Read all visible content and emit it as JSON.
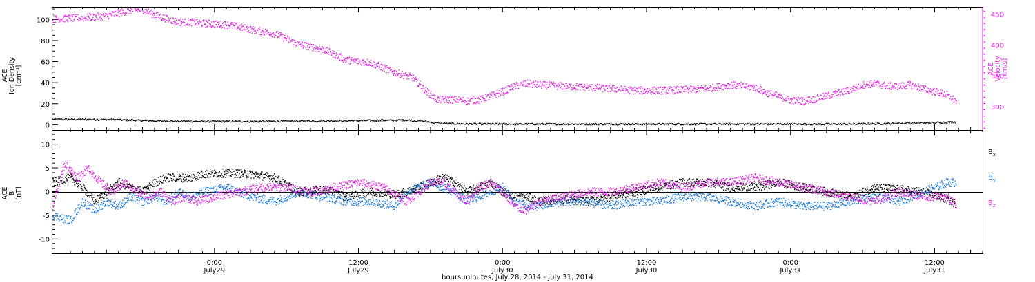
{
  "figure": {
    "x_title": "hours:minutes, July 28, 2014 - July 31, 2014",
    "x_ticks": [
      {
        "hours": 11,
        "time": "0:00",
        "date": "July29"
      },
      {
        "hours": 23,
        "time": "12:00",
        "date": "July29"
      },
      {
        "hours": 35,
        "time": "0:00",
        "date": "July30"
      },
      {
        "hours": 47,
        "time": "12:00",
        "date": "July30"
      },
      {
        "hours": 59,
        "time": "0:00",
        "date": "July31"
      },
      {
        "hours": 71,
        "time": "12:00",
        "date": "July31"
      }
    ],
    "colors": {
      "black": "#000000",
      "blue": "#1a78d6",
      "magenta": "#e21be2"
    }
  },
  "chart_data": [
    {
      "type": "scatter",
      "panel": "top",
      "ylabel_left": [
        "ACE",
        "Ion Density",
        "[cm⁻³]"
      ],
      "ylabel_right": [
        "ACE",
        "Velocity",
        "[km/s]"
      ],
      "xlim_hours": [
        -2.5,
        75
      ],
      "ylim_left": [
        -5,
        112
      ],
      "ylim_right": [
        262,
        462
      ],
      "yticks_left": [
        0,
        20,
        40,
        60,
        80,
        100
      ],
      "yticks_right": [
        300,
        350,
        400,
        450
      ],
      "series": [
        {
          "axis": "left",
          "color": "#000000",
          "x": [
            -2.5,
            0,
            3,
            6,
            10,
            14,
            18,
            22,
            25,
            27,
            28.5,
            29.5,
            30,
            32,
            36,
            40,
            48,
            56,
            64,
            70,
            72.8
          ],
          "y": [
            5.5,
            5.5,
            5,
            4,
            3.5,
            3.5,
            3.8,
            4.2,
            4.5,
            4.8,
            3.5,
            2,
            1.5,
            1.2,
            1,
            1,
            1,
            1,
            1,
            2,
            3
          ]
        },
        {
          "axis": "right",
          "color": "#e21be2",
          "x": [
            -2.5,
            0,
            2,
            3,
            4,
            5,
            6,
            7,
            8,
            9,
            10,
            12,
            14,
            16,
            18,
            20,
            22,
            24,
            26,
            27.5,
            28.5,
            29.5,
            31,
            32,
            33,
            34,
            35,
            36,
            37,
            38,
            40,
            42,
            44,
            46,
            48,
            50,
            52,
            54,
            56,
            57,
            58,
            59,
            60,
            61,
            62,
            63,
            64,
            65,
            66,
            67,
            68,
            69,
            70,
            71,
            72,
            72.8
          ],
          "y": [
            443,
            445,
            448,
            453,
            457,
            458,
            450,
            443,
            438,
            438,
            436,
            434,
            426,
            419,
            402,
            394,
            376,
            372,
            356,
            348,
            328,
            312,
            312,
            310,
            312,
            318,
            325,
            334,
            338,
            336,
            334,
            332,
            330,
            327,
            327,
            328,
            330,
            336,
            332,
            323,
            317,
            311,
            310,
            313,
            318,
            323,
            328,
            336,
            338,
            334,
            334,
            336,
            330,
            325,
            320,
            309
          ]
        }
      ]
    },
    {
      "type": "scatter",
      "panel": "bottom",
      "ylabel_left": [
        "ACE",
        "B",
        "[nT]"
      ],
      "xlim_hours": [
        -2.5,
        75
      ],
      "ylim": [
        -13,
        13
      ],
      "yticks": [
        -10,
        -5,
        0,
        5,
        10
      ],
      "series": [
        {
          "name": "Bx",
          "label": "B",
          "sub": "x",
          "color": "#000000",
          "x": [
            -2.5,
            -1,
            0,
            1,
            2,
            3,
            4,
            5,
            6,
            7,
            8,
            9,
            10,
            12,
            14,
            16,
            18,
            20,
            22,
            24,
            26,
            27,
            28,
            29,
            30,
            31,
            32,
            33,
            34,
            35,
            36,
            37,
            38,
            40,
            42,
            44,
            46,
            48,
            50,
            52,
            54,
            56,
            58,
            60,
            62,
            64,
            66,
            68,
            70,
            72,
            72.8
          ],
          "y": [
            2,
            3,
            1,
            -2,
            0,
            2,
            1,
            0,
            2,
            3,
            3,
            3,
            3.8,
            4,
            3.8,
            3,
            0,
            0.5,
            -1,
            0,
            -0.5,
            0,
            1,
            2,
            3,
            2,
            0,
            1,
            2,
            0,
            -1,
            -1,
            -2,
            -1.5,
            -2,
            -1,
            0,
            1,
            2,
            2,
            1,
            1,
            2,
            1,
            0,
            -1,
            1,
            0.5,
            0,
            -1.5,
            -2.5
          ]
        },
        {
          "name": "By",
          "label": "B",
          "sub": "y",
          "color": "#1a78d6",
          "x": [
            -2.5,
            -1,
            0,
            1,
            2,
            3,
            4,
            5,
            6,
            7,
            8,
            9,
            10,
            12,
            14,
            16,
            18,
            20,
            22,
            24,
            26,
            27,
            28,
            29,
            30,
            31,
            32,
            33,
            34,
            35,
            36,
            37,
            38,
            40,
            42,
            44,
            46,
            48,
            50,
            52,
            54,
            56,
            58,
            60,
            62,
            64,
            66,
            68,
            70,
            72,
            72.8
          ],
          "y": [
            -5,
            -6,
            -2,
            -4,
            -2,
            -3,
            -1,
            -2,
            -1,
            -2,
            0,
            -1,
            0,
            1,
            -1,
            -2,
            0,
            -1,
            -2,
            -2,
            -3,
            0,
            1,
            2,
            1,
            0,
            -2,
            -1,
            0,
            1,
            -2,
            -3,
            -3,
            -2,
            -2,
            -3,
            -2,
            -2,
            -1,
            -1,
            -2,
            -3,
            -2,
            -3,
            -3,
            -2,
            -1,
            -2,
            0,
            2,
            2
          ]
        },
        {
          "name": "Bz",
          "label": "B",
          "sub": "z",
          "color": "#e21be2",
          "x": [
            -2.5,
            -1.5,
            -0.5,
            0.5,
            1.5,
            2.5,
            3.5,
            4.5,
            5.5,
            6.5,
            7.5,
            8.5,
            9.5,
            11,
            13,
            15,
            17,
            19,
            21,
            23,
            25,
            27,
            28,
            29,
            30,
            31,
            32,
            33,
            34,
            35,
            36,
            37,
            38,
            40,
            42,
            44,
            46,
            48,
            50,
            52,
            54,
            56,
            58,
            60,
            62,
            64,
            66,
            68,
            70,
            72,
            72.8
          ],
          "y": [
            -3,
            6,
            3,
            5,
            2,
            0,
            2,
            0,
            -1,
            0,
            -2,
            -1,
            -2,
            -1,
            0,
            1,
            1,
            0,
            1,
            2,
            1,
            -2,
            0,
            2,
            2,
            0,
            -2,
            1,
            2,
            0,
            -3,
            -4,
            -2,
            -1,
            0,
            0,
            1,
            2,
            1,
            2,
            2,
            3,
            2,
            1,
            0,
            -1,
            -2,
            0,
            -1,
            -1,
            -3
          ]
        }
      ]
    }
  ]
}
